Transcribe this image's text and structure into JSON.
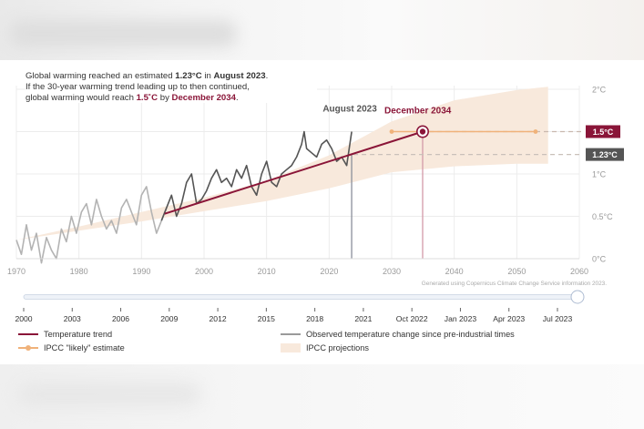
{
  "intro": {
    "line1_pre": "Global warming reached an estimated ",
    "line1_value": "1.23°C",
    "line1_mid": " in ",
    "line1_date": "August 2023",
    "line1_end": ".",
    "line2": "If the 30-year warming trend leading up to then continued,",
    "line3_pre": "global warming would reach ",
    "line3_value": "1.5˚C",
    "line3_mid": " by ",
    "line3_date": "December 2034",
    "line3_end": "."
  },
  "source_note": "Generated using Copernicus Climate Change Service information 2023.",
  "colors": {
    "trend": "#8a1538",
    "observed_early": "#b3b3b3",
    "observed_recent": "#555555",
    "ipcc_likely": "#f0b27a",
    "projection_band": "#f8e9dc",
    "label_123_bg": "#555555"
  },
  "legend": {
    "trend": "Temperature trend",
    "observed": "Observed temperature change since pre-industrial times",
    "ipcc": "IPCC \"likely\" estimate",
    "projections": "IPCC projections"
  },
  "slider": {
    "labels": [
      "2000",
      "2003",
      "2006",
      "2009",
      "2012",
      "2015",
      "2018",
      "2021",
      "Oct 2022",
      "Jan 2023",
      "Apr 2023",
      "Jul 2023"
    ],
    "value_fraction": 1.0
  },
  "chart_data": {
    "type": "line",
    "x_range": [
      1970,
      2060
    ],
    "y_range": [
      0,
      2
    ],
    "x_ticks": [
      "1970",
      "1980",
      "1990",
      "2000",
      "2010",
      "2020",
      "2030",
      "2040",
      "2050",
      "2060"
    ],
    "y_ticks": [
      "0°C",
      "0.5°C",
      "1°C",
      "1.5°C",
      "2°C"
    ],
    "grid": true,
    "annotations": {
      "aug2023_label": "August 2023",
      "dec2034_label": "December 2034",
      "label_15": "1.5°C",
      "label_123": "1.23°C"
    },
    "aug2023": {
      "x": 2023.6,
      "y": 1.23
    },
    "dec2034": {
      "x": 2034.95,
      "y": 1.5
    },
    "trend": {
      "x": [
        1993.7,
        2034.95
      ],
      "y": [
        0.53,
        1.5
      ]
    },
    "ipcc_likely": {
      "x": [
        2030,
        2053
      ],
      "y": 1.5
    },
    "projection_band": {
      "x": [
        1970,
        1980,
        1990,
        2000,
        2010,
        2020,
        2030,
        2040,
        2050,
        2055
      ],
      "lower": [
        0.22,
        0.33,
        0.44,
        0.56,
        0.68,
        0.83,
        1.02,
        1.09,
        1.12,
        1.12
      ],
      "upper": [
        0.22,
        0.38,
        0.55,
        0.72,
        0.92,
        1.22,
        1.62,
        1.87,
        1.99,
        2.03
      ]
    },
    "observed": {
      "x": [
        1970.0,
        1970.8,
        1971.6,
        1972.4,
        1973.2,
        1974.0,
        1974.8,
        1975.6,
        1976.4,
        1977.2,
        1978.0,
        1978.8,
        1979.6,
        1980.4,
        1981.2,
        1982.0,
        1982.8,
        1983.6,
        1984.4,
        1985.2,
        1986.0,
        1986.8,
        1987.6,
        1988.4,
        1989.2,
        1990.0,
        1990.8,
        1991.6,
        1992.4,
        1993.2,
        1994.0,
        1994.8,
        1995.6,
        1996.4,
        1997.2,
        1998.0,
        1998.8,
        1999.6,
        2000.4,
        2001.2,
        2002.0,
        2002.8,
        2003.6,
        2004.4,
        2005.2,
        2006.0,
        2006.8,
        2007.6,
        2008.4,
        2009.2,
        2010.0,
        2010.8,
        2011.6,
        2012.4,
        2013.2,
        2014.0,
        2014.8,
        2015.6,
        2016.0,
        2016.4,
        2017.2,
        2018.0,
        2018.8,
        2019.6,
        2020.4,
        2021.2,
        2022.0,
        2022.8,
        2023.6
      ],
      "y": [
        0.22,
        0.05,
        0.4,
        0.1,
        0.3,
        -0.05,
        0.25,
        0.1,
        0.0,
        0.35,
        0.2,
        0.5,
        0.3,
        0.55,
        0.65,
        0.4,
        0.7,
        0.5,
        0.35,
        0.45,
        0.3,
        0.6,
        0.7,
        0.55,
        0.4,
        0.75,
        0.85,
        0.55,
        0.3,
        0.45,
        0.6,
        0.75,
        0.5,
        0.65,
        0.9,
        1.0,
        0.65,
        0.7,
        0.8,
        0.95,
        1.05,
        0.9,
        0.95,
        0.85,
        1.05,
        0.95,
        1.1,
        0.85,
        0.75,
        1.0,
        1.15,
        0.9,
        0.85,
        1.0,
        1.05,
        1.1,
        1.2,
        1.35,
        1.5,
        1.3,
        1.25,
        1.2,
        1.35,
        1.4,
        1.3,
        1.15,
        1.2,
        1.1,
        1.5
      ]
    }
  }
}
